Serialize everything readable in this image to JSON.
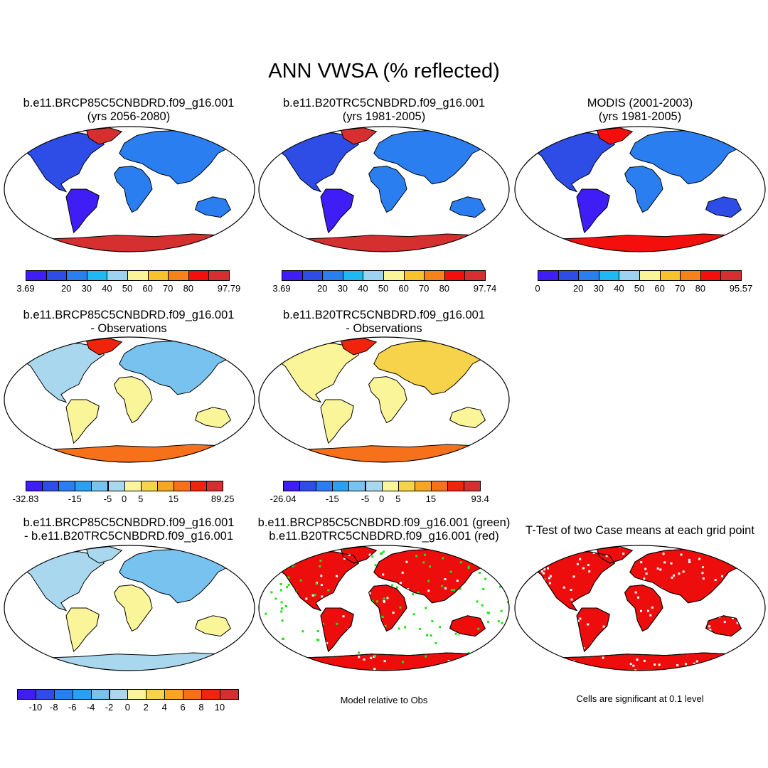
{
  "title": "ANN VWSA (% reflected)",
  "palette": {
    "abs": [
      "#3f1df5",
      "#2e4ce6",
      "#2a7ef0",
      "#20b8f2",
      "#9dd3f0",
      "#fbf59a",
      "#f7c22b",
      "#f7811b",
      "#f40f0c",
      "#d62f2f"
    ],
    "diff": [
      "#3f1df5",
      "#2e4ce6",
      "#2a7ef0",
      "#2aa0ee",
      "#78c2ef",
      "#a9d7ee",
      "#fbf59a",
      "#f7d24b",
      "#f7a623",
      "#f7701a",
      "#f0240c",
      "#d62f2f"
    ],
    "sig_case1": "#19e319",
    "sig_case2": "#ee0d0d",
    "sig_both": "#ee0d0d"
  },
  "panels": {
    "case1": {
      "line1": "b.e11.BRCP85C5CNBDRD.f09_g16.001",
      "line2": "(yrs 2056-2080)",
      "colorbar": {
        "ticks": [
          "3.69",
          "20",
          "30",
          "40",
          "50",
          "60",
          "70",
          "80",
          "97.79"
        ]
      }
    },
    "case2": {
      "line1": "b.e11.B20TRC5CNBDRD.f09_g16.001",
      "line2": "(yrs 1981-2005)",
      "colorbar": {
        "ticks": [
          "3.69",
          "20",
          "30",
          "40",
          "50",
          "60",
          "70",
          "80",
          "97.74"
        ]
      }
    },
    "obs": {
      "line1": "MODIS (2001-2003)",
      "line2": "(yrs 1981-2005)",
      "colorbar": {
        "ticks": [
          "0",
          "20",
          "30",
          "40",
          "50",
          "60",
          "70",
          "80",
          "95.57"
        ]
      }
    },
    "case1_obs": {
      "line1": "b.e11.BRCP85C5CNBDRD.f09_g16.001",
      "line2": "- Observations",
      "colorbar": {
        "ticks": [
          "-32.83",
          "-15",
          "-5",
          "0",
          "5",
          "15",
          "89.25"
        ]
      }
    },
    "case2_obs": {
      "line1": "b.e11.B20TRC5CNBDRD.f09_g16.001",
      "line2": "- Observations",
      "colorbar": {
        "ticks": [
          "-26.04",
          "-15",
          "-5",
          "0",
          "5",
          "15",
          "93.4"
        ]
      }
    },
    "case_diff": {
      "line1": "b.e11.BRCP85C5CNBDRD.f09_g16.001",
      "line2": "- b.e11.B20TRC5CNBDRD.f09_g16.001",
      "colorbar": {
        "ticks": [
          "-10",
          "-8",
          "-6",
          "-4",
          "-2",
          "0",
          "2",
          "4",
          "6",
          "8",
          "10"
        ]
      }
    },
    "comparison": {
      "line1": "b.e11.BRCP85C5CNBDRD.f09_g16.001 (green)",
      "line2": "b.e11.B20TRC5CNBDRD.f09_g16.001 (red)",
      "note": "Model relative to Obs"
    },
    "ttest": {
      "line1": "T-Test of two Case means at each grid point",
      "note": "Cells are significant at 0.1 level"
    }
  }
}
